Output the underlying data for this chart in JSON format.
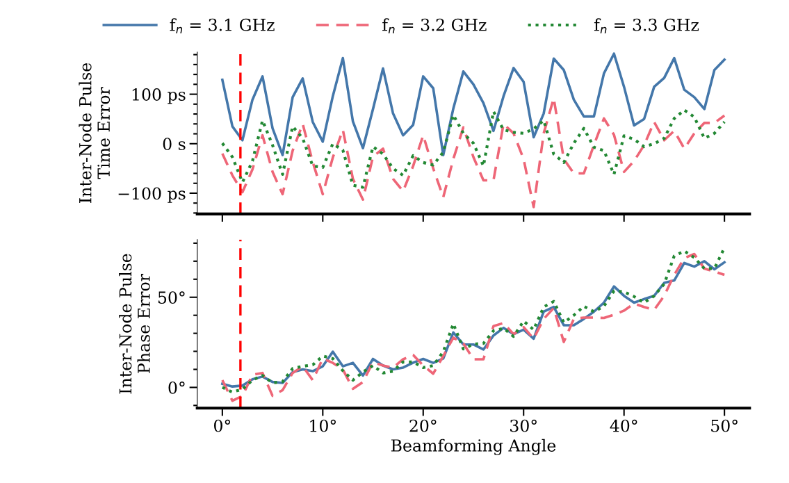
{
  "chart_data": [
    {
      "type": "line",
      "ylabel": "Inter-Node Pulse\nTime Error",
      "x": [
        0,
        1,
        2,
        3,
        4,
        5,
        6,
        7,
        8,
        9,
        10,
        11,
        12,
        13,
        14,
        15,
        16,
        17,
        18,
        19,
        20,
        21,
        22,
        23,
        24,
        25,
        26,
        27,
        28,
        29,
        30,
        31,
        32,
        33,
        34,
        35,
        36,
        37,
        38,
        39,
        40,
        41,
        42,
        43,
        44,
        45,
        46,
        47,
        48,
        49,
        50
      ],
      "series": [
        {
          "name": "f$_{n}$ = 3.1 GHz",
          "color": "#4477aa",
          "line_style": "solid",
          "values": [
            129,
            35,
            7,
            89,
            136,
            31,
            -23,
            94,
            132,
            44,
            4,
            96,
            173,
            45,
            -9,
            70,
            152,
            61,
            17,
            38,
            136,
            112,
            -23,
            71,
            146,
            120,
            82,
            26,
            96,
            153,
            125,
            13,
            61,
            172,
            149,
            89,
            55,
            55,
            142,
            182,
            115,
            37,
            50,
            115,
            133,
            173,
            109,
            94,
            70,
            149,
            170
          ]
        },
        {
          "name": "f$_{n}$ = 3.2 GHz",
          "color": "#ee6677",
          "line_style": "dashed",
          "values": [
            -20,
            -64,
            -98,
            -52,
            17,
            -57,
            -102,
            -14,
            40,
            -37,
            -102,
            -28,
            28,
            -71,
            -113,
            -26,
            -10,
            -71,
            -96,
            -45,
            17,
            -50,
            -108,
            -31,
            33,
            -27,
            -74,
            -74,
            40,
            21,
            -31,
            -128,
            21,
            92,
            -31,
            -60,
            -60,
            -3,
            51,
            18,
            -57,
            -35,
            -3,
            44,
            7,
            26,
            -10,
            21,
            42,
            42,
            57
          ]
        },
        {
          "name": "f$_{n}$ = 3.3 GHz",
          "color": "#228833",
          "line_style": "dotted",
          "values": [
            1,
            -27,
            -78,
            -35,
            47,
            -3,
            -62,
            35,
            11,
            -45,
            -48,
            0,
            -13,
            -84,
            -88,
            -6,
            -21,
            -50,
            -64,
            -24,
            -38,
            -43,
            -17,
            58,
            21,
            1,
            -45,
            65,
            28,
            23,
            21,
            30,
            47,
            -21,
            -38,
            1,
            31,
            -7,
            -14,
            -62,
            16,
            9,
            -6,
            0,
            11,
            51,
            68,
            54,
            11,
            21,
            44
          ]
        }
      ],
      "xlim": [
        -2.5,
        52.5
      ],
      "xticks": [
        0,
        10,
        20,
        30,
        40,
        50
      ],
      "ylim": [
        -142,
        185
      ],
      "yticks": [
        {
          "value": -140,
          "label": null
        },
        {
          "value": -120,
          "label": null
        },
        {
          "value": -100,
          "label": "−100 ps"
        },
        {
          "value": -80,
          "label": null
        },
        {
          "value": -60,
          "label": null
        },
        {
          "value": -40,
          "label": null
        },
        {
          "value": -20,
          "label": null
        },
        {
          "value": 0,
          "label": "0 s"
        },
        {
          "value": 20,
          "label": null
        },
        {
          "value": 40,
          "label": null
        },
        {
          "value": 60,
          "label": null
        },
        {
          "value": 80,
          "label": null
        },
        {
          "value": 100,
          "label": "100 ps"
        },
        {
          "value": 120,
          "label": null
        },
        {
          "value": 140,
          "label": null
        },
        {
          "value": 160,
          "label": null
        },
        {
          "value": 180,
          "label": null
        }
      ],
      "tick_labels": "y",
      "legend": "top",
      "grid": false,
      "ref_lines": [
        {
          "axis": "x",
          "value": 1.8,
          "color": "#ff0000",
          "line_style": "dashed"
        }
      ]
    },
    {
      "type": "line",
      "ylabel": "Inter-Node Pulse\nPhase Error",
      "xlabel": "Beamforming Angle",
      "x": [
        0,
        1,
        2,
        3,
        4,
        5,
        6,
        7,
        8,
        9,
        10,
        11,
        12,
        13,
        14,
        15,
        16,
        17,
        18,
        19,
        20,
        21,
        22,
        23,
        24,
        25,
        26,
        27,
        28,
        29,
        30,
        31,
        32,
        33,
        34,
        35,
        36,
        37,
        38,
        39,
        40,
        41,
        42,
        43,
        44,
        45,
        46,
        47,
        48,
        49,
        50
      ],
      "series": [
        {
          "color": "#4477aa",
          "line_style": "solid",
          "values": [
            2,
            0.5,
            1,
            4.5,
            6,
            3,
            2.5,
            8.5,
            10,
            9,
            11.7,
            19.8,
            11.7,
            13.6,
            6.6,
            15.8,
            12.1,
            10,
            11,
            13.7,
            15.8,
            13.6,
            16,
            30.5,
            23.8,
            23.8,
            21,
            28.8,
            33,
            29.5,
            32,
            27,
            42,
            44.6,
            34.5,
            34.5,
            38,
            42,
            47,
            56,
            50.8,
            47,
            49,
            50.8,
            58,
            59.3,
            69,
            67,
            70,
            65.5,
            69.4
          ]
        },
        {
          "color": "#ee6677",
          "line_style": "dashed",
          "values": [
            4,
            -7.4,
            -4.7,
            7,
            8,
            -4.7,
            -1.5,
            8,
            11.7,
            4,
            16,
            13.6,
            10,
            -0.8,
            3,
            14,
            12.1,
            10.9,
            15.6,
            18,
            12.1,
            7.6,
            17.4,
            27.6,
            24.4,
            15.6,
            15.6,
            34,
            35.7,
            29.5,
            33.4,
            27,
            38,
            44,
            25.2,
            38,
            38.7,
            38.7,
            38.5,
            40.3,
            42.6,
            46.5,
            44.6,
            43,
            50.8,
            62.4,
            71.7,
            74,
            65.9,
            64.3,
            62.4
          ]
        },
        {
          "color": "#228833",
          "line_style": "dotted",
          "values": [
            0,
            -2.6,
            -1,
            4,
            6.6,
            2.5,
            3.2,
            10.5,
            11.7,
            12.5,
            17.4,
            16,
            9.3,
            4,
            8.5,
            12.1,
            8,
            9,
            14.1,
            14.1,
            11,
            12.1,
            19.8,
            35.3,
            21.3,
            24,
            24.4,
            31.4,
            32.8,
            28.3,
            36.8,
            32,
            44.6,
            47.7,
            36,
            40,
            45,
            42,
            45,
            53.5,
            53,
            50.4,
            47,
            50.8,
            57.4,
            72.9,
            75.6,
            72,
            65.9,
            66,
            77.5
          ]
        }
      ],
      "xlim": [
        -2.5,
        52.5
      ],
      "xticks": [
        {
          "value": 0,
          "label": "0°"
        },
        {
          "value": 10,
          "label": "10°"
        },
        {
          "value": 20,
          "label": "20°"
        },
        {
          "value": 30,
          "label": "30°"
        },
        {
          "value": 40,
          "label": "40°"
        },
        {
          "value": 50,
          "label": "50°"
        }
      ],
      "ylim": [
        -11.5,
        82
      ],
      "yticks": [
        {
          "value": -10,
          "label": null
        },
        {
          "value": 0,
          "label": "0°"
        },
        {
          "value": 10,
          "label": null
        },
        {
          "value": 20,
          "label": null
        },
        {
          "value": 30,
          "label": null
        },
        {
          "value": 40,
          "label": null
        },
        {
          "value": 50,
          "label": "50°"
        },
        {
          "value": 60,
          "label": null
        },
        {
          "value": 70,
          "label": null
        },
        {
          "value": 80,
          "label": null
        }
      ],
      "grid": false,
      "ref_lines": [
        {
          "axis": "x",
          "value": 1.8,
          "color": "#ff0000",
          "line_style": "dashed"
        }
      ]
    }
  ]
}
